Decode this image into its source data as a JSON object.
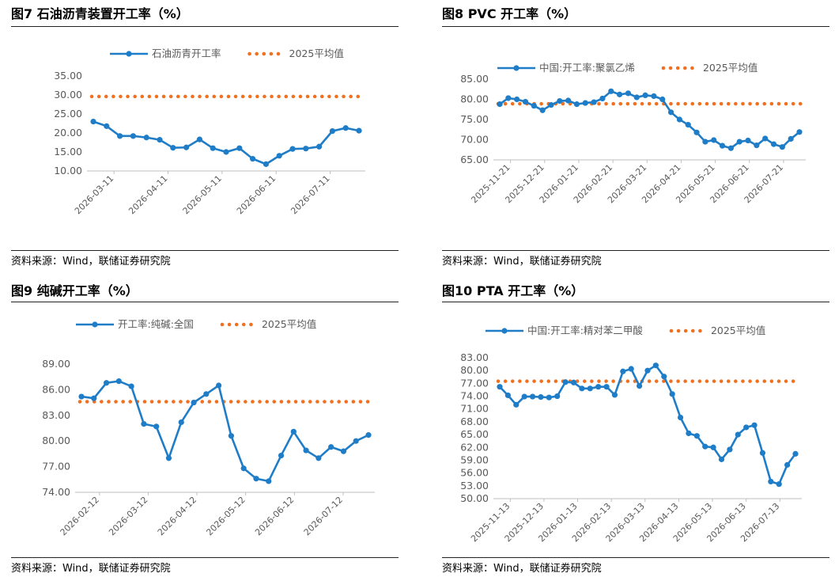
{
  "colors": {
    "series": "#1F7DC8",
    "avg": "#F07020",
    "axis": "#BFBFBF"
  },
  "source_text": "资料来源：Wind，联储证券研究院",
  "avg_legend": "2025平均值",
  "chart_data": [
    {
      "id": "fig7",
      "type": "line",
      "title": "图7  石油沥青装置开工率（%）",
      "series_name": "石油沥青开工率",
      "y_ticks": [
        "35.00",
        "30.00",
        "25.00",
        "20.00",
        "15.00",
        "10.00"
      ],
      "ylim": [
        10,
        35
      ],
      "x_ticks": [
        "2026-03-11",
        "2026-04-11",
        "2026-05-11",
        "2026-06-11",
        "2026-07-11"
      ],
      "values": [
        23.0,
        21.8,
        19.2,
        19.2,
        18.8,
        18.2,
        16.1,
        16.2,
        18.3,
        16.0,
        15.0,
        16.0,
        13.2,
        11.8,
        14.0,
        15.8,
        15.9,
        16.4,
        20.5,
        21.3,
        20.6
      ],
      "avg": 29.6
    },
    {
      "id": "fig8",
      "type": "line",
      "title": "图8   PVC 开工率（%）",
      "series_name": "中国:开工率:聚氯乙烯",
      "y_ticks": [
        "85.00",
        "80.00",
        "75.00",
        "70.00",
        "65.00"
      ],
      "ylim": [
        65,
        85
      ],
      "x_ticks": [
        "2025-11-21",
        "2025-12-21",
        "2026-01-21",
        "2026-02-21",
        "2026-03-21",
        "2026-04-21",
        "2026-05-21",
        "2026-06-21",
        "2026-07-21"
      ],
      "values": [
        78.8,
        80.3,
        80.0,
        79.4,
        78.4,
        77.3,
        78.6,
        79.6,
        79.7,
        78.8,
        79.1,
        79.3,
        80.2,
        82.0,
        81.2,
        81.5,
        80.5,
        81.0,
        80.8,
        80.0,
        76.8,
        75.0,
        73.7,
        71.8,
        69.5,
        69.9,
        68.5,
        67.9,
        69.5,
        69.8,
        68.6,
        70.3,
        68.9,
        68.2,
        70.2,
        71.9
      ],
      "avg": 78.9
    },
    {
      "id": "fig9",
      "type": "line",
      "title": "图9   纯碱开工率（%）",
      "series_name": "开工率:纯碱:全国",
      "y_ticks": [
        "89.00",
        "86.00",
        "83.00",
        "80.00",
        "77.00",
        "74.00"
      ],
      "ylim": [
        74,
        89
      ],
      "x_ticks": [
        "2026-02-12",
        "2026-03-12",
        "2026-04-12",
        "2026-05-12",
        "2026-06-12",
        "2026-07-12"
      ],
      "values": [
        85.2,
        85.0,
        86.8,
        87.0,
        86.4,
        82.0,
        81.7,
        78.0,
        82.2,
        84.5,
        85.5,
        86.5,
        80.6,
        76.8,
        75.6,
        75.3,
        78.3,
        81.1,
        78.9,
        78.0,
        79.3,
        78.8,
        80.0,
        80.7
      ],
      "avg": 84.6
    },
    {
      "id": "fig10",
      "type": "line",
      "title": "图10 PTA 开工率（%）",
      "series_name": "中国:开工率:精对苯二甲酸",
      "y_ticks": [
        "83.00",
        "80.00",
        "77.00",
        "74.00",
        "71.00",
        "68.00",
        "65.00",
        "62.00",
        "59.00",
        "56.00",
        "53.00",
        "50.00"
      ],
      "ylim": [
        50,
        83
      ],
      "x_ticks": [
        "2025-11-13",
        "2025-12-13",
        "2026-01-13",
        "2026-02-13",
        "2026-03-13",
        "2026-04-13",
        "2026-05-13",
        "2026-06-13",
        "2026-07-13"
      ],
      "values": [
        76.2,
        74.2,
        72.0,
        73.9,
        73.9,
        73.8,
        73.7,
        74.0,
        77.3,
        77.2,
        75.8,
        75.8,
        76.2,
        76.2,
        74.3,
        79.8,
        80.4,
        76.4,
        80.0,
        81.2,
        78.6,
        74.5,
        69.0,
        65.3,
        64.7,
        62.2,
        62.0,
        59.2,
        61.5,
        65.0,
        66.7,
        67.2,
        60.7,
        54.0,
        53.4,
        57.9,
        60.5
      ],
      "avg": 77.5
    }
  ]
}
